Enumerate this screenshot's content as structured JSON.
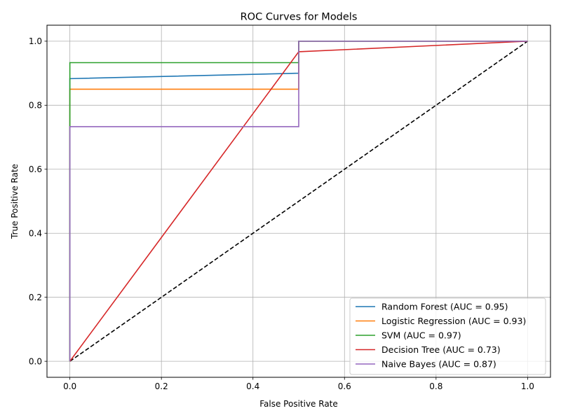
{
  "chart_data": {
    "type": "line",
    "title": "ROC Curves for Models",
    "xlabel": "False Positive Rate",
    "ylabel": "True Positive Rate",
    "xlim": [
      -0.05,
      1.05
    ],
    "ylim": [
      -0.05,
      1.05
    ],
    "x_ticks": [
      0.0,
      0.2,
      0.4,
      0.6,
      0.8,
      1.0
    ],
    "x_tick_labels": [
      "0.0",
      "0.2",
      "0.4",
      "0.6",
      "0.8",
      "1.0"
    ],
    "y_ticks": [
      0.0,
      0.2,
      0.4,
      0.6,
      0.8,
      1.0
    ],
    "y_tick_labels": [
      "0.0",
      "0.2",
      "0.4",
      "0.6",
      "0.8",
      "1.0"
    ],
    "grid": true,
    "legend_position": "lower-right",
    "series": [
      {
        "name": "Random Forest (AUC = 0.95)",
        "color": "#1f77b4",
        "x": [
          0.0,
          0.0,
          0.5,
          0.5,
          1.0
        ],
        "y": [
          0.0,
          0.883,
          0.9,
          1.0,
          1.0
        ]
      },
      {
        "name": "Logistic Regression (AUC = 0.93)",
        "color": "#ff7f0e",
        "x": [
          0.0,
          0.0,
          0.5,
          0.5,
          1.0
        ],
        "y": [
          0.0,
          0.85,
          0.85,
          1.0,
          1.0
        ]
      },
      {
        "name": "SVM (AUC = 0.97)",
        "color": "#2ca02c",
        "x": [
          0.0,
          0.0,
          0.5,
          0.5,
          1.0
        ],
        "y": [
          0.0,
          0.933,
          0.933,
          1.0,
          1.0
        ]
      },
      {
        "name": "Decision Tree (AUC = 0.73)",
        "color": "#d62728",
        "x": [
          0.0,
          0.5,
          1.0
        ],
        "y": [
          0.0,
          0.967,
          1.0
        ]
      },
      {
        "name": "Naive Bayes (AUC = 0.87)",
        "color": "#9467bd",
        "x": [
          0.0,
          0.0,
          0.5,
          0.5,
          1.0
        ],
        "y": [
          0.0,
          0.733,
          0.733,
          1.0,
          1.0
        ]
      }
    ],
    "reference_line": {
      "x": [
        0.0,
        1.0
      ],
      "y": [
        0.0,
        1.0
      ],
      "color": "#000000",
      "style": "dashed"
    }
  }
}
